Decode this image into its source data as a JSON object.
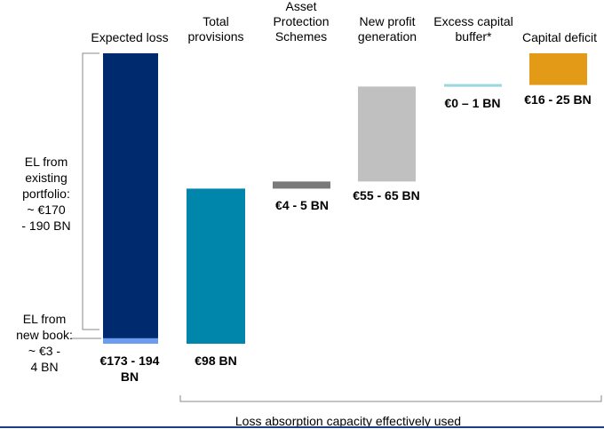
{
  "chart_data": {
    "type": "bar",
    "subtype": "waterfall",
    "categories": [
      "Expected loss",
      "Total\nprovisions",
      "Asset\nProtection\nSchemes",
      "New profit\ngeneration",
      "Excess capital\nbuffer*",
      "Capital deficit"
    ],
    "bars": [
      {
        "category": "Expected loss",
        "color": "#002a6e",
        "segments": [
          {
            "component": "existing portfolio",
            "range": [
              3,
              183.5
            ],
            "color": "#002a6e"
          },
          {
            "component": "new book",
            "range": [
              0,
              3.5
            ],
            "color": "#6c9cf0"
          }
        ],
        "value_label": "€173 - 194\nBN"
      },
      {
        "category": "Total provisions",
        "range": [
          0,
          98
        ],
        "color": "#0086aa",
        "value_label": "€98 BN"
      },
      {
        "category": "Asset Protection Schemes",
        "range": [
          98,
          102.5
        ],
        "color": "#7a7a7a",
        "value_label": "€4 - 5 BN"
      },
      {
        "category": "New profit generation",
        "range": [
          102.5,
          162.5
        ],
        "color": "#c0c0c0",
        "value_label": "€55 - 65 BN"
      },
      {
        "category": "Excess capital buffer*",
        "range": [
          162.5,
          163.5
        ],
        "color": "#9ad8de",
        "value_label": "€0 – 1 BN"
      },
      {
        "category": "Capital deficit",
        "range": [
          163.5,
          183.5
        ],
        "color": "#e39a17",
        "value_label": "€16 - 25 BN"
      }
    ],
    "annotations": {
      "el_existing": "EL from\nexisting\nportfolio:\n~ €170\n- 190 BN",
      "el_new": "EL from\nnew book:\n~ €3 -\n4 BN",
      "bottom_bracket": "Loss absorption capacity effectively used"
    },
    "ylim": [
      0,
      183.5
    ],
    "axes_visible": false,
    "grid": false,
    "legend": "none"
  }
}
